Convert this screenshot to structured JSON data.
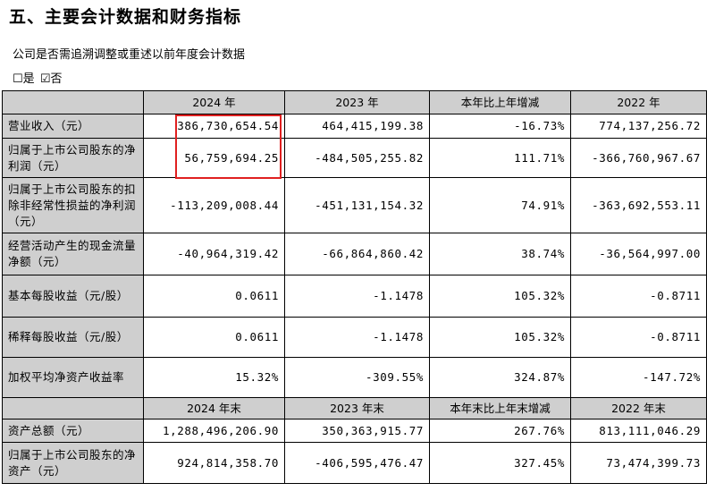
{
  "heading": "五、主要会计数据和财务指标",
  "question": "公司是否需追溯调整或重述以前年度会计数据",
  "options": [
    {
      "box": "☐",
      "label": "是"
    },
    {
      "box": "☑",
      "label": "否"
    }
  ],
  "table": {
    "header1": [
      "",
      "2024 年",
      "2023 年",
      "本年比上年增减",
      "2022 年"
    ],
    "rows1": [
      {
        "label": "营业收入（元）",
        "values": [
          "386,730,654.54",
          "464,415,199.38",
          "-16.73%",
          "774,137,256.72"
        ]
      },
      {
        "label": "归属于上市公司股东的净利润（元）",
        "values": [
          "56,759,694.25",
          "-484,505,255.82",
          "111.71%",
          "-366,760,967.67"
        ]
      },
      {
        "label": "归属于上市公司股东的扣除非经常性损益的净利润（元）",
        "values": [
          "-113,209,008.44",
          "-451,131,154.32",
          "74.91%",
          "-363,692,553.11"
        ]
      },
      {
        "label": "经营活动产生的现金流量净额（元）",
        "values": [
          "-40,964,319.42",
          "-66,864,860.42",
          "38.74%",
          "-36,564,997.00"
        ]
      },
      {
        "label": "基本每股收益（元/股）",
        "values": [
          "0.0611",
          "-1.1478",
          "105.32%",
          "-0.8711"
        ]
      },
      {
        "label": "稀释每股收益（元/股）",
        "values": [
          "0.0611",
          "-1.1478",
          "105.32%",
          "-0.8711"
        ]
      },
      {
        "label": "加权平均净资产收益率",
        "values": [
          "15.32%",
          "-309.55%",
          "324.87%",
          "-147.72%"
        ]
      }
    ],
    "header2": [
      "",
      "2024 年末",
      "2023 年末",
      "本年末比上年末增减",
      "2022 年末"
    ],
    "rows2": [
      {
        "label": "资产总额（元）",
        "values": [
          "1,288,496,206.90",
          "350,363,915.77",
          "267.76%",
          "813,111,046.29"
        ]
      },
      {
        "label": "归属于上市公司股东的净资产（元）",
        "values": [
          "924,814,358.70",
          "-406,595,476.47",
          "327.45%",
          "73,474,399.73"
        ]
      }
    ]
  },
  "highlight_color": "#e02020"
}
